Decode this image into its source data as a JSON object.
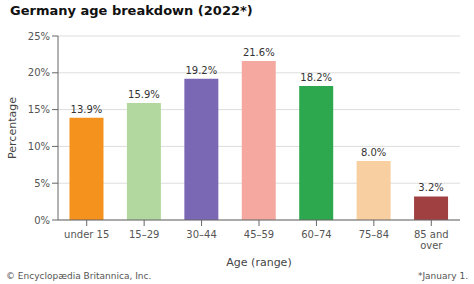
{
  "chart_data": {
    "type": "bar",
    "title": "Germany age breakdown (2022*)",
    "categories": [
      "under 15",
      "15–29",
      "30–44",
      "45–59",
      "60–74",
      "75–84",
      "85 and\nover"
    ],
    "values": [
      13.9,
      15.9,
      19.2,
      21.6,
      18.2,
      8.0,
      3.2
    ],
    "value_labels": [
      "13.9%",
      "15.9%",
      "19.2%",
      "21.6%",
      "18.2%",
      "8.0%",
      "3.2%"
    ],
    "data_labels": true,
    "colors": [
      "#f5921e",
      "#b2d8a0",
      "#7b68b5",
      "#f4a8a0",
      "#2da84e",
      "#f8cfa0",
      "#a04040"
    ],
    "xlabel": "Age (range)",
    "ylabel": "Percentage",
    "ylim": [
      0,
      25
    ],
    "yticks": [
      {
        "value": 0,
        "label": "0%"
      },
      {
        "value": 5,
        "label": "5%"
      },
      {
        "value": 10,
        "label": "10%"
      },
      {
        "value": 15,
        "label": "15%"
      },
      {
        "value": 20,
        "label": "20%"
      },
      {
        "value": 25,
        "label": "25%"
      }
    ],
    "grid": true,
    "annotations": [
      "© Encyclopædia Britannica, Inc.",
      "*January 1."
    ]
  }
}
